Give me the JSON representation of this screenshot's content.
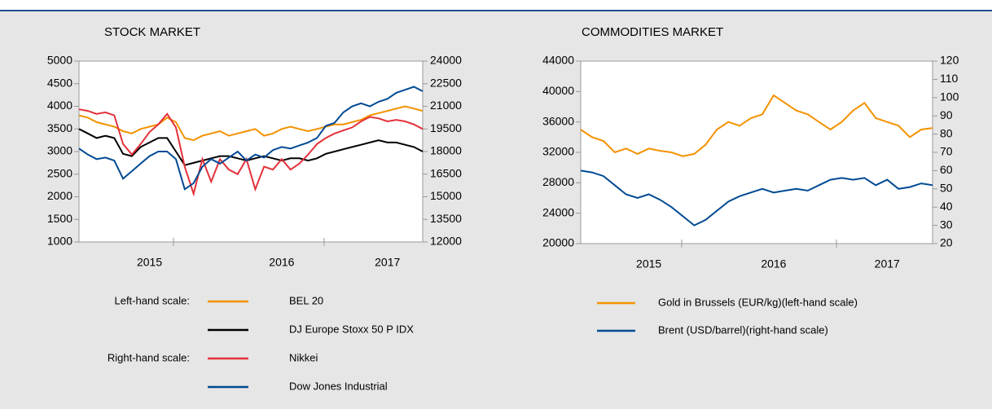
{
  "chart_data": [
    {
      "type": "line",
      "title": "STOCK MARKET",
      "categories": [
        null,
        null,
        null,
        null,
        null,
        null,
        null,
        null,
        "2015",
        null,
        null,
        null,
        null,
        null,
        null,
        null,
        null,
        null,
        null,
        null,
        null,
        null,
        null,
        "2016",
        null,
        null,
        null,
        null,
        null,
        null,
        null,
        null,
        null,
        null,
        null,
        "2017",
        null,
        null,
        null,
        null
      ],
      "ylim": [
        1000,
        5000
      ],
      "yticks": [
        1000,
        1500,
        2000,
        2500,
        3000,
        3500,
        4000,
        4500,
        5000
      ],
      "y2lim": [
        12000,
        24000
      ],
      "y2ticks": [
        12000,
        13500,
        15000,
        16500,
        18000,
        19500,
        21000,
        22500,
        24000
      ],
      "legend_groups": [
        "Left-hand scale:",
        "Right-hand scale:"
      ],
      "series": [
        {
          "name": "BEL 20",
          "color": "#f39200",
          "axis": "y",
          "values": [
            3800,
            3750,
            3650,
            3600,
            3550,
            3450,
            3400,
            3500,
            3550,
            3600,
            3750,
            3650,
            3300,
            3250,
            3350,
            3400,
            3450,
            3350,
            3400,
            3450,
            3500,
            3350,
            3400,
            3500,
            3550,
            3500,
            3450,
            3500,
            3550,
            3600,
            3600,
            3650,
            3700,
            3800,
            3850,
            3900,
            3950,
            4000,
            3950,
            3900
          ]
        },
        {
          "name": "DJ Europe Stoxx 50 P IDX",
          "color": "#000000",
          "axis": "y",
          "values": [
            3500,
            3400,
            3300,
            3350,
            3300,
            2950,
            2900,
            3100,
            3200,
            3300,
            3300,
            3000,
            2700,
            2750,
            2800,
            2850,
            2900,
            2900,
            2850,
            2800,
            2850,
            2900,
            2850,
            2800,
            2850,
            2850,
            2800,
            2850,
            2950,
            3000,
            3050,
            3100,
            3150,
            3200,
            3250,
            3200,
            3200,
            3150,
            3100,
            3000
          ]
        },
        {
          "name": "Nikkei",
          "color": "#e3313b",
          "axis": "y2",
          "values": [
            20800,
            20700,
            20500,
            20600,
            20400,
            18500,
            17800,
            18500,
            19300,
            19800,
            20500,
            19600,
            17000,
            15200,
            17500,
            16000,
            17500,
            16800,
            16500,
            17500,
            15500,
            17000,
            16800,
            17500,
            16800,
            17200,
            17800,
            18500,
            18900,
            19200,
            19400,
            19600,
            20000,
            20300,
            20200,
            20000,
            20100,
            20000,
            19800,
            19500
          ]
        },
        {
          "name": "Dow Jones Industrial",
          "color": "#004a93",
          "axis": "y2",
          "values": [
            18200,
            17800,
            17500,
            17600,
            17400,
            16200,
            16700,
            17200,
            17700,
            18000,
            18000,
            17500,
            15500,
            15900,
            17000,
            17500,
            17200,
            17600,
            18000,
            17400,
            17800,
            17600,
            18100,
            18300,
            18200,
            18400,
            18600,
            18900,
            19700,
            19900,
            20600,
            21000,
            21200,
            21000,
            21300,
            21500,
            21900,
            22100,
            22300,
            22000
          ]
        }
      ]
    },
    {
      "type": "line",
      "title": "COMMODITIES MARKET",
      "categories": [
        null,
        null,
        null,
        null,
        null,
        null,
        "2015",
        null,
        null,
        null,
        null,
        null,
        null,
        null,
        null,
        null,
        null,
        "2016",
        null,
        null,
        null,
        null,
        null,
        null,
        null,
        null,
        null,
        "2017",
        null,
        null,
        null,
        null
      ],
      "ylim": [
        20000,
        44000
      ],
      "yticks": [
        20000,
        24000,
        28000,
        32000,
        36000,
        40000,
        44000
      ],
      "y2lim": [
        20,
        120
      ],
      "y2ticks": [
        20,
        30,
        40,
        50,
        60,
        70,
        80,
        90,
        100,
        110,
        120
      ],
      "series": [
        {
          "name": "Gold in Brussels (EUR/kg)(left-hand scale)",
          "color": "#f39200",
          "axis": "y",
          "values": [
            35000,
            34000,
            33500,
            32000,
            32500,
            31800,
            32500,
            32200,
            32000,
            31500,
            31800,
            33000,
            35000,
            36000,
            35500,
            36500,
            37000,
            39500,
            38500,
            37500,
            37000,
            36000,
            35000,
            36000,
            37500,
            38500,
            36500,
            36000,
            35500,
            34000,
            35000,
            35200
          ]
        },
        {
          "name": "Brent (USD/barrel)(right-hand scale)",
          "color": "#004a93",
          "axis": "y2",
          "values": [
            60,
            59,
            57,
            52,
            47,
            45,
            47,
            44,
            40,
            35,
            30,
            33,
            38,
            43,
            46,
            48,
            50,
            48,
            49,
            50,
            49,
            52,
            55,
            56,
            55,
            56,
            52,
            55,
            50,
            51,
            53,
            52
          ]
        }
      ]
    }
  ]
}
